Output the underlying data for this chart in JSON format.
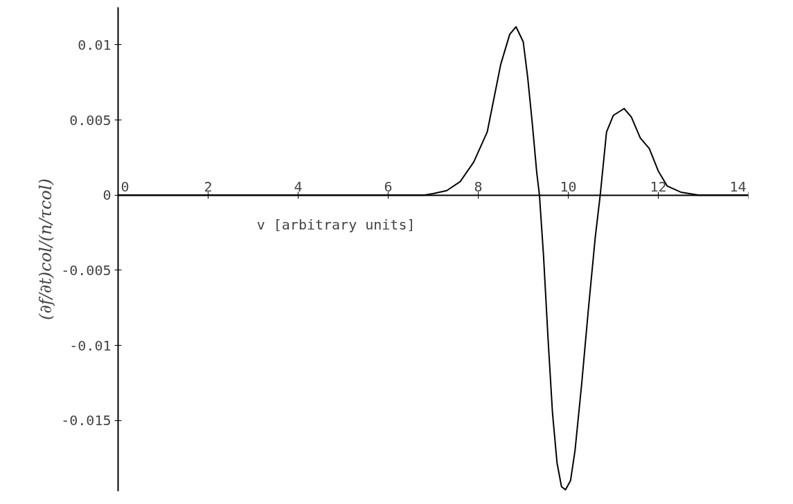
{
  "chart_data": {
    "type": "line",
    "xlabel": "v [arbitrary units]",
    "ylabel": "(∂f/∂t)col/(n/τcol)",
    "x": [
      0,
      6.8,
      7.0,
      7.3,
      7.6,
      7.9,
      8.2,
      8.5,
      8.7,
      8.84,
      9.0,
      9.1,
      9.2,
      9.3,
      9.36,
      9.45,
      9.55,
      9.65,
      9.75,
      9.85,
      9.94,
      10.05,
      10.15,
      10.3,
      10.45,
      10.6,
      10.71,
      10.85,
      11.0,
      11.24,
      11.4,
      11.6,
      11.8,
      12.0,
      12.2,
      12.5,
      12.9,
      14
    ],
    "series": [
      {
        "color": "#000000",
        "values": [
          0,
          0,
          0.0001,
          0.0003,
          0.0009,
          0.0022,
          0.0042,
          0.0087,
          0.0107,
          0.0112,
          0.0102,
          0.0078,
          0.0048,
          0.0015,
          0,
          -0.004,
          -0.0095,
          -0.0145,
          -0.0178,
          -0.0194,
          -0.0196,
          -0.019,
          -0.017,
          -0.0125,
          -0.0075,
          -0.0028,
          0,
          0.0042,
          0.0053,
          0.00576,
          0.0052,
          0.0038,
          0.0031,
          0.0016,
          0.0006,
          0.0002,
          0,
          0
        ]
      }
    ],
    "xlim": [
      0,
      14
    ],
    "ylim": [
      -0.0197,
      0.0125
    ],
    "xticks": [
      0,
      2,
      4,
      6,
      8,
      10,
      12,
      14
    ],
    "yticks": [
      -0.015,
      -0.01,
      -0.005,
      0,
      0.005,
      0.01
    ],
    "grid": false,
    "marker": "none",
    "line_style": "solid"
  }
}
